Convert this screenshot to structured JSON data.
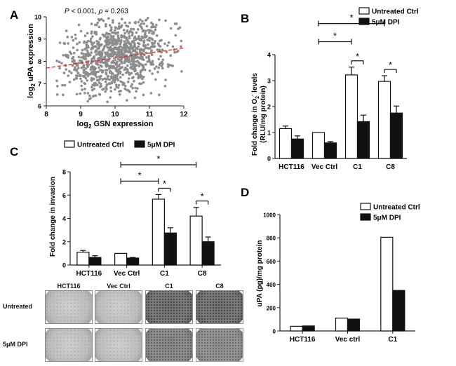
{
  "panels": {
    "A": "A",
    "B": "B",
    "C": "C",
    "D": "D"
  },
  "wells": {
    "columns": [
      "HCT116",
      "Vec Ctrl",
      "C1",
      "C8"
    ],
    "rows": [
      "Untreated",
      "5μM DPI"
    ]
  },
  "chart_data": [
    {
      "id": "A",
      "type": "scatter",
      "title": "",
      "annotation": "P < 0.001, ρ = 0.263",
      "annotation_parts": {
        "p_label": "P",
        "p_text": " < 0.001, ",
        "rho_label": "ρ",
        "rho_text": " = 0.263"
      },
      "xlabel": "log2 GSN expression",
      "xlabel_parts": {
        "pre": "log",
        "sub": "2",
        "post": " GSN expression"
      },
      "ylabel": "log2 uPA expression",
      "ylabel_parts": {
        "pre": "log",
        "sub": "2",
        "post": " uPA expression"
      },
      "xlim": [
        8,
        12
      ],
      "ylim": [
        6,
        10
      ],
      "xticks": [
        "8",
        "9",
        "10",
        "11",
        "12"
      ],
      "yticks": [
        "6",
        "7",
        "8",
        "9",
        "10"
      ],
      "trend_line": {
        "x": [
          8,
          12
        ],
        "y": [
          7.7,
          8.6
        ],
        "color": "#e03030"
      },
      "point_color": "#8c8c8c",
      "n_points_approx": 1000,
      "cloud_center": [
        10.0,
        8.2
      ]
    },
    {
      "id": "B",
      "type": "bar",
      "categories": [
        "HCT116",
        "Vec Ctrl",
        "C1",
        "C8"
      ],
      "series": [
        {
          "name": "Untreated Ctrl",
          "values": [
            1.15,
            1.0,
            3.22,
            2.97
          ],
          "errors": [
            0.1,
            0.0,
            0.3,
            0.22
          ],
          "color": "#ffffff"
        },
        {
          "name": "5μM DPI",
          "values": [
            0.75,
            0.6,
            1.42,
            1.75
          ],
          "errors": [
            0.12,
            0.05,
            0.25,
            0.27
          ],
          "color": "#111111"
        }
      ],
      "ylabel": "Fold change in O2- levels (RLU/mg protein)",
      "ylabel_parts": {
        "line1_pre": "Fold change in O",
        "sub": "2",
        "sup": "-",
        "line1_post": " levels",
        "line2": "(RLU/mg protein)"
      },
      "ylim": [
        0,
        4
      ],
      "yticks": [
        "0",
        "1",
        "2",
        "3",
        "4"
      ],
      "legend_position": "top-right",
      "significance": [
        {
          "label": "*",
          "type": "within",
          "category": 2
        },
        {
          "label": "*",
          "type": "within",
          "category": 3
        },
        {
          "label": "*",
          "type": "between",
          "from": 1,
          "to": 2,
          "y": 4.5
        },
        {
          "label": "*",
          "type": "between",
          "from": 1,
          "to": 3,
          "y": 5.2
        }
      ]
    },
    {
      "id": "C",
      "type": "bar",
      "categories": [
        "HCT116",
        "Vec Ctrl",
        "C1",
        "C8"
      ],
      "series": [
        {
          "name": "Untreated Ctrl",
          "values": [
            1.1,
            1.0,
            5.65,
            4.2
          ],
          "errors": [
            0.15,
            0.0,
            0.4,
            0.75
          ],
          "color": "#ffffff"
        },
        {
          "name": "5μM DPI",
          "values": [
            0.65,
            0.6,
            2.75,
            2.0
          ],
          "errors": [
            0.15,
            0.05,
            0.45,
            0.4
          ],
          "color": "#111111"
        }
      ],
      "ylabel": "Fold change in invasion",
      "ylim": [
        0,
        8
      ],
      "yticks": [
        "0",
        "2",
        "4",
        "6",
        "8"
      ],
      "legend_position": "top",
      "significance": [
        {
          "label": "*",
          "type": "within",
          "category": 2
        },
        {
          "label": "*",
          "type": "within",
          "category": 3
        },
        {
          "label": "*",
          "type": "between",
          "from": 1,
          "to": 2,
          "y": 7.2
        },
        {
          "label": "*",
          "type": "between",
          "from": 1,
          "to": 3,
          "y": 8.6
        }
      ]
    },
    {
      "id": "D",
      "type": "bar",
      "categories": [
        "HCT116",
        "Vec ctrl",
        "C1"
      ],
      "series": [
        {
          "name": "Untreated Ctrl",
          "values": [
            40,
            110,
            805
          ],
          "color": "#ffffff"
        },
        {
          "name": "5μM DPI",
          "values": [
            43,
            102,
            348
          ],
          "color": "#111111"
        }
      ],
      "ylabel": "uPA (pg)/mg protein",
      "ylim": [
        0,
        1000
      ],
      "yticks": [
        "0",
        "200",
        "400",
        "600",
        "800",
        "1000"
      ],
      "legend_position": "top-right"
    }
  ]
}
